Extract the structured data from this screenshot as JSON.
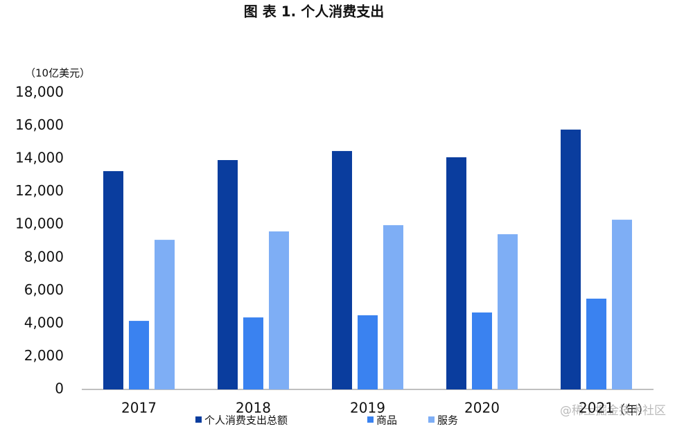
{
  "chart_data": {
    "type": "bar",
    "title": "图 表 1. 个人消费支出",
    "y_unit": "（10亿美元）",
    "x_unit": "（年）",
    "categories": [
      "2017",
      "2018",
      "2019",
      "2020",
      "2021"
    ],
    "series": [
      {
        "name": "个人消费支出总额",
        "color": "#0a3d9e",
        "values": [
          13250,
          13920,
          14470,
          14090,
          15770
        ]
      },
      {
        "name": "商品",
        "color": "#3a82f0",
        "values": [
          4160,
          4370,
          4500,
          4670,
          5510
        ]
      },
      {
        "name": "服务",
        "color": "#7eaef5",
        "values": [
          9080,
          9590,
          9970,
          9420,
          10300
        ]
      }
    ],
    "ylim": [
      0,
      18000
    ],
    "yticks": [
      0,
      {
        "value": 2000,
        "label": "2,000"
      },
      {
        "value": 4000,
        "label": "4,000"
      },
      {
        "value": 6000,
        "label": "6,000"
      },
      {
        "value": 8000,
        "label": "8,000"
      },
      {
        "value": 10000,
        "label": "10,000"
      },
      {
        "value": 12000,
        "label": "12,000"
      },
      {
        "value": 14000,
        "label": "14,000"
      },
      {
        "value": 16000,
        "label": "16,000"
      },
      {
        "value": 18000,
        "label": "18,000"
      }
    ],
    "grid": false,
    "watermark": "@稀土掘金技术社区"
  }
}
